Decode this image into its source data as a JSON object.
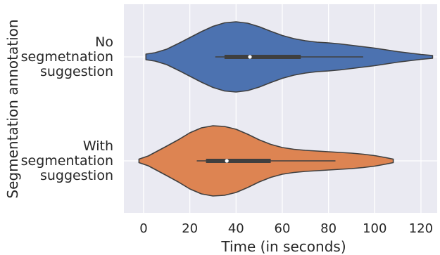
{
  "chart_data": {
    "type": "violin",
    "orientation": "horizontal",
    "xlabel": "Time (in seconds)",
    "ylabel": "Segmentation annotation",
    "xlim": [
      -9,
      128
    ],
    "xticks": [
      0,
      20,
      40,
      60,
      80,
      100,
      120
    ],
    "grid": true,
    "background": "#EAEAF2",
    "categories": [
      {
        "label_lines": [
          "No",
          "segmetnation",
          "suggestion"
        ],
        "color": "#4C72B0",
        "extent": [
          1,
          125
        ],
        "whisker": [
          31,
          95
        ],
        "q1": 35,
        "q3": 68,
        "median": 46,
        "density": [
          [
            1,
            0.08
          ],
          [
            5,
            0.12
          ],
          [
            10,
            0.22
          ],
          [
            15,
            0.38
          ],
          [
            20,
            0.55
          ],
          [
            25,
            0.72
          ],
          [
            30,
            0.87
          ],
          [
            35,
            0.97
          ],
          [
            40,
            1.0
          ],
          [
            45,
            0.96
          ],
          [
            50,
            0.86
          ],
          [
            55,
            0.73
          ],
          [
            60,
            0.61
          ],
          [
            65,
            0.52
          ],
          [
            70,
            0.46
          ],
          [
            75,
            0.42
          ],
          [
            80,
            0.4
          ],
          [
            85,
            0.37
          ],
          [
            90,
            0.33
          ],
          [
            95,
            0.29
          ],
          [
            100,
            0.25
          ],
          [
            105,
            0.2
          ],
          [
            110,
            0.15
          ],
          [
            115,
            0.11
          ],
          [
            120,
            0.07
          ],
          [
            125,
            0.04
          ]
        ]
      },
      {
        "label_lines": [
          "With",
          "segmentation",
          "suggestion"
        ],
        "color": "#DD8452",
        "extent": [
          -2,
          108
        ],
        "whisker": [
          23,
          83
        ],
        "q1": 27,
        "q3": 55,
        "median": 36,
        "density": [
          [
            -2,
            0.05
          ],
          [
            2,
            0.14
          ],
          [
            6,
            0.28
          ],
          [
            10,
            0.42
          ],
          [
            15,
            0.6
          ],
          [
            20,
            0.8
          ],
          [
            25,
            0.94
          ],
          [
            30,
            1.0
          ],
          [
            35,
            0.98
          ],
          [
            40,
            0.9
          ],
          [
            45,
            0.76
          ],
          [
            50,
            0.6
          ],
          [
            55,
            0.47
          ],
          [
            60,
            0.38
          ],
          [
            65,
            0.33
          ],
          [
            70,
            0.3
          ],
          [
            75,
            0.28
          ],
          [
            80,
            0.26
          ],
          [
            85,
            0.24
          ],
          [
            90,
            0.22
          ],
          [
            95,
            0.19
          ],
          [
            100,
            0.15
          ],
          [
            105,
            0.09
          ],
          [
            108,
            0.05
          ]
        ]
      }
    ]
  }
}
